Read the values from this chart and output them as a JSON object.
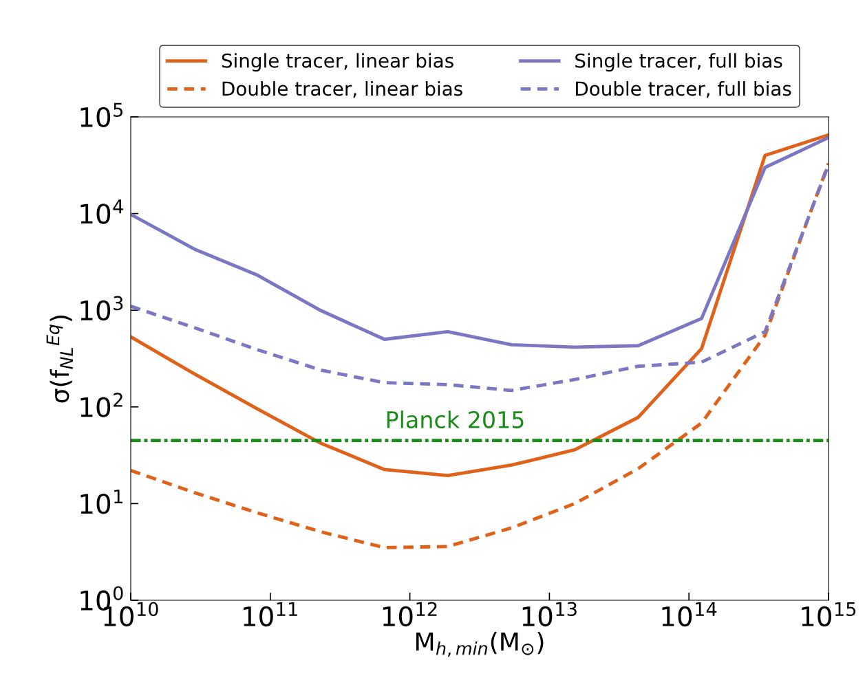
{
  "chart_data": {
    "type": "line",
    "log": "xy",
    "xlabel": "M$_{h,min}$(M$_{⊙}$)",
    "ylabel": "σ(f$_{NL}$$^{Eq}$)",
    "x": [
      10000000000.0,
      28500000000.0,
      81100000000.0,
      231000000000.0,
      658000000000.0,
      1870000000000.0,
      5340000000000.0,
      15200000000000.0,
      43300000000000.0,
      123000000000000.0,
      351000000000000.0,
      1000000000000000.0
    ],
    "series": [
      {
        "name": "Single tracer, linear bias",
        "color": "#e0621a",
        "line_style": "solid",
        "values": [
          530,
          220,
          95,
          42,
          22.5,
          19.5,
          25,
          36,
          78,
          400,
          40000,
          65000
        ]
      },
      {
        "name": "Double tracer, linear bias",
        "color": "#e0621a",
        "line_style": "dashed",
        "values": [
          22,
          13,
          8,
          5.1,
          3.5,
          3.6,
          5.6,
          10,
          23,
          68,
          550,
          33000
        ]
      },
      {
        "name": "Single tracer, full bias",
        "color": "#7b77c2",
        "line_style": "solid",
        "values": [
          9800,
          4300,
          2300,
          990,
          500,
          600,
          440,
          415,
          430,
          820,
          30000,
          61000
        ]
      },
      {
        "name": "Double tracer, full bias",
        "color": "#7b77c2",
        "line_style": "dashed",
        "values": [
          1100,
          660,
          390,
          240,
          178,
          170,
          148,
          192,
          263,
          290,
          600,
          32000
        ]
      }
    ],
    "xlim": [
      10000000000.0,
      1000000000000000.0
    ],
    "ylim": [
      1,
      100000
    ],
    "xticks": [
      {
        "value": 10000000000.0,
        "label": "10$^{10}$"
      },
      {
        "value": 100000000000.0,
        "label": "10$^{11}$"
      },
      {
        "value": 1000000000000.0,
        "label": "10$^{12}$"
      },
      {
        "value": 10000000000000.0,
        "label": "10$^{13}$"
      },
      {
        "value": 100000000000000.0,
        "label": "10$^{14}$"
      },
      {
        "value": 1000000000000000.0,
        "label": "10$^{15}$"
      }
    ],
    "yticks": [
      {
        "value": 1,
        "label": "10$^{0}$"
      },
      {
        "value": 10,
        "label": "10$^{1}$"
      },
      {
        "value": 100,
        "label": "10$^{2}$"
      },
      {
        "value": 1000,
        "label": "10$^{3}$"
      },
      {
        "value": 10000,
        "label": "10$^{4}$"
      },
      {
        "value": 100000,
        "label": "10$^{5}$"
      }
    ],
    "ref_lines": [
      {
        "axis": "y",
        "value": 45,
        "label": "Planck 2015",
        "color": "#1a8c1a",
        "line_style": "dashdot"
      }
    ],
    "legend": "top",
    "grid": false
  }
}
